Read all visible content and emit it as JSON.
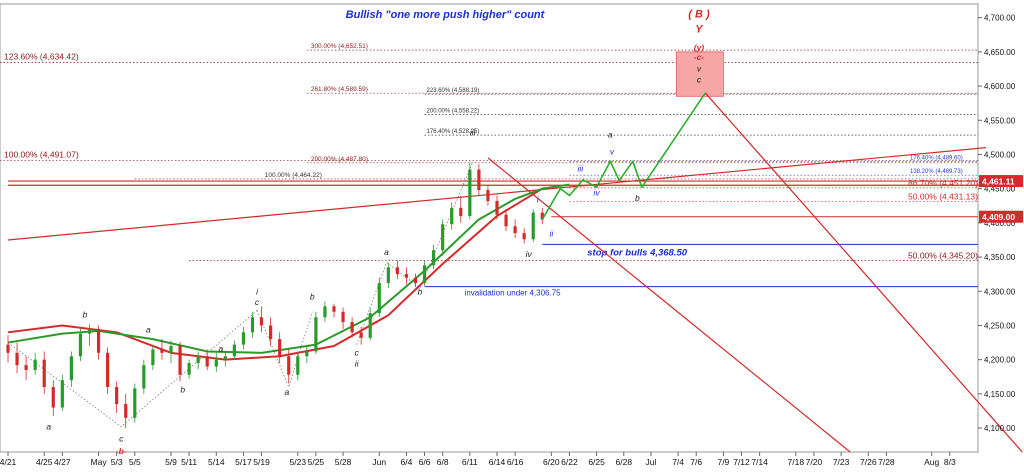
{
  "chart_data": {
    "type": "candlestick",
    "title": "Bullish \"one more push higher\" count",
    "ylim": [
      4065,
      4720
    ],
    "y_ticks": [
      4100,
      4150,
      4200,
      4250,
      4300,
      4350,
      4400,
      4450,
      4500,
      4550,
      4600,
      4650,
      4700
    ],
    "y_tick_labels": [
      "4,100.00",
      "4,150.00",
      "4,200.00",
      "4,250.00",
      "4,300.00",
      "4,350.00",
      "4,400.00",
      "4,450.00",
      "4,500.00",
      "4,550.00",
      "4,600.00",
      "4,650.00",
      "4,700.00"
    ],
    "x_ticks": [
      {
        "d": 0,
        "label": "4/21"
      },
      {
        "d": 4,
        "label": "4/25"
      },
      {
        "d": 6,
        "label": "4/27"
      },
      {
        "d": 10,
        "label": "May"
      },
      {
        "d": 12,
        "label": "5/3"
      },
      {
        "d": 14,
        "label": "5/5"
      },
      {
        "d": 18,
        "label": "5/9"
      },
      {
        "d": 20,
        "label": "5/11"
      },
      {
        "d": 23,
        "label": "5/14"
      },
      {
        "d": 26,
        "label": "5/17"
      },
      {
        "d": 28,
        "label": "5/19"
      },
      {
        "d": 32,
        "label": "5/23"
      },
      {
        "d": 34,
        "label": "5/25"
      },
      {
        "d": 37,
        "label": "5/28"
      },
      {
        "d": 41,
        "label": "Jun"
      },
      {
        "d": 44,
        "label": "6/4"
      },
      {
        "d": 46,
        "label": "6/6"
      },
      {
        "d": 48,
        "label": "6/8"
      },
      {
        "d": 51,
        "label": "6/11"
      },
      {
        "d": 54,
        "label": "6/14"
      },
      {
        "d": 56,
        "label": "6/16"
      },
      {
        "d": 60,
        "label": "6/20"
      },
      {
        "d": 62,
        "label": "6/22"
      },
      {
        "d": 65,
        "label": "6/25"
      },
      {
        "d": 68,
        "label": "6/28"
      },
      {
        "d": 71,
        "label": "Jul"
      },
      {
        "d": 74,
        "label": "7/4"
      },
      {
        "d": 76,
        "label": "7/6"
      },
      {
        "d": 79,
        "label": "7/9"
      },
      {
        "d": 81,
        "label": "7/12"
      },
      {
        "d": 83,
        "label": "7/14"
      },
      {
        "d": 87,
        "label": "7/18"
      },
      {
        "d": 89,
        "label": "7/20"
      },
      {
        "d": 92,
        "label": "7/23"
      },
      {
        "d": 95,
        "label": "7/26"
      },
      {
        "d": 97,
        "label": "7/28"
      },
      {
        "d": 102,
        "label": "Aug"
      },
      {
        "d": 104,
        "label": "8/3"
      }
    ],
    "candles": [
      {
        "d": 0,
        "o": 4222,
        "h": 4236,
        "l": 4196,
        "c": 4210
      },
      {
        "d": 1,
        "o": 4210,
        "h": 4225,
        "l": 4180,
        "c": 4192
      },
      {
        "d": 2,
        "o": 4192,
        "h": 4205,
        "l": 4170,
        "c": 4185
      },
      {
        "d": 3,
        "o": 4185,
        "h": 4210,
        "l": 4178,
        "c": 4200
      },
      {
        "d": 4,
        "o": 4200,
        "h": 4212,
        "l": 4150,
        "c": 4160
      },
      {
        "d": 5,
        "o": 4160,
        "h": 4170,
        "l": 4118,
        "c": 4130
      },
      {
        "d": 6,
        "o": 4130,
        "h": 4178,
        "l": 4125,
        "c": 4170
      },
      {
        "d": 7,
        "o": 4170,
        "h": 4212,
        "l": 4160,
        "c": 4205
      },
      {
        "d": 8,
        "o": 4205,
        "h": 4246,
        "l": 4198,
        "c": 4238
      },
      {
        "d": 9,
        "o": 4238,
        "h": 4252,
        "l": 4220,
        "c": 4244
      },
      {
        "d": 10,
        "o": 4244,
        "h": 4250,
        "l": 4200,
        "c": 4210
      },
      {
        "d": 11,
        "o": 4210,
        "h": 4218,
        "l": 4150,
        "c": 4160
      },
      {
        "d": 12,
        "o": 4160,
        "h": 4168,
        "l": 4122,
        "c": 4135
      },
      {
        "d": 13,
        "o": 4135,
        "h": 4150,
        "l": 4100,
        "c": 4115
      },
      {
        "d": 14,
        "o": 4115,
        "h": 4165,
        "l": 4108,
        "c": 4158
      },
      {
        "d": 15,
        "o": 4158,
        "h": 4200,
        "l": 4150,
        "c": 4192
      },
      {
        "d": 16,
        "o": 4192,
        "h": 4222,
        "l": 4185,
        "c": 4215
      },
      {
        "d": 17,
        "o": 4215,
        "h": 4230,
        "l": 4200,
        "c": 4210
      },
      {
        "d": 18,
        "o": 4210,
        "h": 4228,
        "l": 4195,
        "c": 4220
      },
      {
        "d": 19,
        "o": 4220,
        "h": 4226,
        "l": 4168,
        "c": 4178
      },
      {
        "d": 20,
        "o": 4178,
        "h": 4200,
        "l": 4172,
        "c": 4195
      },
      {
        "d": 21,
        "o": 4195,
        "h": 4212,
        "l": 4186,
        "c": 4205
      },
      {
        "d": 22,
        "o": 4205,
        "h": 4215,
        "l": 4185,
        "c": 4190
      },
      {
        "d": 23,
        "o": 4190,
        "h": 4210,
        "l": 4182,
        "c": 4200
      },
      {
        "d": 24,
        "o": 4200,
        "h": 4212,
        "l": 4190,
        "c": 4205
      },
      {
        "d": 25,
        "o": 4205,
        "h": 4228,
        "l": 4200,
        "c": 4222
      },
      {
        "d": 26,
        "o": 4222,
        "h": 4248,
        "l": 4215,
        "c": 4240
      },
      {
        "d": 27,
        "o": 4240,
        "h": 4270,
        "l": 4232,
        "c": 4262
      },
      {
        "d": 28,
        "o": 4262,
        "h": 4278,
        "l": 4240,
        "c": 4250
      },
      {
        "d": 29,
        "o": 4250,
        "h": 4262,
        "l": 4220,
        "c": 4230
      },
      {
        "d": 30,
        "o": 4230,
        "h": 4240,
        "l": 4195,
        "c": 4205
      },
      {
        "d": 31,
        "o": 4205,
        "h": 4215,
        "l": 4165,
        "c": 4178
      },
      {
        "d": 32,
        "o": 4178,
        "h": 4212,
        "l": 4170,
        "c": 4205
      },
      {
        "d": 33,
        "o": 4205,
        "h": 4220,
        "l": 4195,
        "c": 4212
      },
      {
        "d": 34,
        "o": 4212,
        "h": 4270,
        "l": 4208,
        "c": 4262
      },
      {
        "d": 35,
        "o": 4262,
        "h": 4285,
        "l": 4255,
        "c": 4278
      },
      {
        "d": 36,
        "o": 4278,
        "h": 4282,
        "l": 4262,
        "c": 4270
      },
      {
        "d": 37,
        "o": 4270,
        "h": 4276,
        "l": 4245,
        "c": 4255
      },
      {
        "d": 38,
        "o": 4255,
        "h": 4262,
        "l": 4232,
        "c": 4240
      },
      {
        "d": 39,
        "o": 4240,
        "h": 4248,
        "l": 4222,
        "c": 4232
      },
      {
        "d": 40,
        "o": 4232,
        "h": 4275,
        "l": 4228,
        "c": 4268
      },
      {
        "d": 41,
        "o": 4268,
        "h": 4320,
        "l": 4262,
        "c": 4312
      },
      {
        "d": 42,
        "o": 4312,
        "h": 4342,
        "l": 4305,
        "c": 4335
      },
      {
        "d": 43,
        "o": 4335,
        "h": 4345,
        "l": 4318,
        "c": 4325
      },
      {
        "d": 44,
        "o": 4325,
        "h": 4335,
        "l": 4310,
        "c": 4320
      },
      {
        "d": 45,
        "o": 4320,
        "h": 4326,
        "l": 4306,
        "c": 4312
      },
      {
        "d": 46,
        "o": 4312,
        "h": 4345,
        "l": 4308,
        "c": 4338
      },
      {
        "d": 47,
        "o": 4338,
        "h": 4368,
        "l": 4332,
        "c": 4360
      },
      {
        "d": 48,
        "o": 4360,
        "h": 4405,
        "l": 4352,
        "c": 4398
      },
      {
        "d": 49,
        "o": 4398,
        "h": 4430,
        "l": 4390,
        "c": 4422
      },
      {
        "d": 50,
        "o": 4422,
        "h": 4440,
        "l": 4400,
        "c": 4410
      },
      {
        "d": 51,
        "o": 4410,
        "h": 4488,
        "l": 4405,
        "c": 4478
      },
      {
        "d": 52,
        "o": 4478,
        "h": 4486,
        "l": 4440,
        "c": 4448
      },
      {
        "d": 53,
        "o": 4448,
        "h": 4455,
        "l": 4425,
        "c": 4432
      },
      {
        "d": 54,
        "o": 4432,
        "h": 4440,
        "l": 4405,
        "c": 4412
      },
      {
        "d": 55,
        "o": 4412,
        "h": 4420,
        "l": 4388,
        "c": 4395
      },
      {
        "d": 56,
        "o": 4395,
        "h": 4405,
        "l": 4378,
        "c": 4385
      },
      {
        "d": 57,
        "o": 4385,
        "h": 4392,
        "l": 4370,
        "c": 4376
      },
      {
        "d": 58,
        "o": 4376,
        "h": 4420,
        "l": 4372,
        "c": 4415
      },
      {
        "d": 59,
        "o": 4415,
        "h": 4422,
        "l": 4398,
        "c": 4405
      }
    ],
    "moving_averages": [
      {
        "name": "",
        "color": "#d42a2a",
        "d": [
          0,
          6,
          12,
          18,
          24,
          30,
          36,
          42,
          48,
          54,
          59
        ],
        "values": [
          4240,
          4250,
          4240,
          4210,
          4200,
          4205,
          4220,
          4265,
          4340,
          4410,
          4450
        ]
      },
      {
        "name": "",
        "color": "#2a9a2a",
        "d": [
          0,
          6,
          10,
          16,
          22,
          28,
          34,
          40,
          46,
          52,
          56,
          59,
          62
        ],
        "values": [
          4225,
          4238,
          4242,
          4230,
          4212,
          4210,
          4222,
          4262,
          4330,
          4405,
          4435,
          4450,
          4456
        ]
      }
    ],
    "projection_path": [
      {
        "d": 59,
        "v": 4405
      },
      {
        "d": 61,
        "v": 4450
      },
      {
        "d": 62,
        "v": 4440
      },
      {
        "d": 63.5,
        "v": 4463
      },
      {
        "d": 65,
        "v": 4452
      },
      {
        "d": 66.5,
        "v": 4490
      },
      {
        "d": 67.5,
        "v": 4462
      },
      {
        "d": 69,
        "v": 4490
      },
      {
        "d": 70,
        "v": 4452
      },
      {
        "d": 77,
        "v": 4590
      }
    ],
    "price_levels": [
      {
        "name": "stop for bulls",
        "v": 4368.5,
        "label": "stop for bulls 4,368.50",
        "color": "#1c2fd0",
        "from": 59,
        "to": 108
      },
      {
        "name": "invalidation",
        "v": 4306.75,
        "label": "invalidation under 4,306.75",
        "color": "#1c2fd0",
        "from": 46,
        "to": 108
      },
      {
        "name": "current",
        "v": 4461.11,
        "color": "#d42a2a",
        "from": 0,
        "to": 108
      },
      {
        "name": "last",
        "v": 4409.0,
        "color": "#d42a2a",
        "from": 60,
        "to": 108
      }
    ],
    "fib_levels": [
      {
        "label": "300.00% (4,652.51)",
        "v": 4652.51,
        "from": 33,
        "to": 108,
        "color": "#8b1a1a"
      },
      {
        "label": "261.80% (4,589.59)",
        "v": 4589.59,
        "from": 33,
        "to": 108,
        "color": "#8b1a1a"
      },
      {
        "label": "200.00% (4,487.80)",
        "v": 4487.8,
        "from": 33,
        "to": 108,
        "color": "#8b1a1a"
      },
      {
        "label": "100.00% (4,464.22)",
        "v": 4464.22,
        "from": 14,
        "to": 108,
        "color": "#333333"
      },
      {
        "label": "223.60% (4,588.19)",
        "v": 4588.19,
        "from": 46,
        "to": 108,
        "color": "#333333"
      },
      {
        "label": "200.00% (4,558.22)",
        "v": 4558.22,
        "from": 46,
        "to": 108,
        "color": "#333333"
      },
      {
        "label": "176.40% (4,528.25)",
        "v": 4528.25,
        "from": 46,
        "to": 108,
        "color": "#333333"
      },
      {
        "label": "176.40% (4,489.60)",
        "v": 4489.6,
        "from": 62,
        "to": 108,
        "color": "#2a3acc"
      },
      {
        "label": "138.20% (4,469.73)",
        "v": 4469.73,
        "from": 62,
        "to": 108,
        "color": "#2a3acc"
      },
      {
        "label": "86.70% (4,451.20)",
        "v": 4451.2,
        "from": 62,
        "to": 108,
        "color": "#d42a2a"
      },
      {
        "label": "50.00% (4,431.13)",
        "v": 4431.13,
        "from": 62,
        "to": 108,
        "color": "#d42a2a"
      },
      {
        "label": "50.00% (4,345.20)",
        "v": 4345.2,
        "from": 20,
        "to": 108,
        "color": "#8b1a1a"
      }
    ],
    "left_levels": [
      {
        "label": "123.60% (4,634.42)",
        "v": 4634.42,
        "color": "#8b1a1a"
      },
      {
        "label": "100.00% (4,491.07)",
        "v": 4491.07,
        "color": "#8b1a1a"
      }
    ],
    "price_tags": [
      {
        "label": "4,461.11",
        "v": 4461.11
      },
      {
        "label": "4,409.00",
        "v": 4409.0
      }
    ],
    "wave_labels": [
      {
        "t": "a",
        "d": 4.5,
        "v": 4098,
        "color": "#222"
      },
      {
        "t": "b",
        "d": 8.5,
        "v": 4262,
        "color": "#222"
      },
      {
        "t": "c",
        "d": 12.5,
        "v": 4080,
        "color": "#222"
      },
      {
        "t": "-b-",
        "d": 12.5,
        "v": 4062,
        "color": "#d42a2a"
      },
      {
        "t": "a",
        "d": 15.5,
        "v": 4240,
        "color": "#222"
      },
      {
        "t": "b",
        "d": 19.3,
        "v": 4152,
        "color": "#222"
      },
      {
        "t": "a",
        "d": 23.5,
        "v": 4212,
        "color": "#222"
      },
      {
        "t": "i",
        "d": 27.5,
        "v": 4295,
        "color": "#222"
      },
      {
        "t": "c",
        "d": 27.5,
        "v": 4280,
        "color": "#222"
      },
      {
        "t": "a",
        "d": 30.8,
        "v": 4148,
        "color": "#222"
      },
      {
        "t": "b",
        "d": 33.6,
        "v": 4288,
        "color": "#222"
      },
      {
        "t": "c",
        "d": 38.5,
        "v": 4206,
        "color": "#222"
      },
      {
        "t": "ii",
        "d": 38.5,
        "v": 4190,
        "color": "#222"
      },
      {
        "t": "a",
        "d": 41.8,
        "v": 4353,
        "color": "#222"
      },
      {
        "t": "b",
        "d": 45.5,
        "v": 4295,
        "color": "#222"
      },
      {
        "t": "iii",
        "d": 51.3,
        "v": 4528,
        "color": "#222"
      },
      {
        "t": "iv",
        "d": 57.5,
        "v": 4350,
        "color": "#222"
      },
      {
        "t": "i",
        "d": 58.5,
        "v": 4430,
        "color": "#1c2fd0"
      },
      {
        "t": "ii",
        "d": 60,
        "v": 4380,
        "color": "#1c2fd0"
      },
      {
        "t": "iii",
        "d": 63.2,
        "v": 4475,
        "color": "#1c2fd0"
      },
      {
        "t": "iv",
        "d": 65,
        "v": 4440,
        "color": "#1c2fd0"
      },
      {
        "t": "a",
        "d": 66.5,
        "v": 4525,
        "color": "#222"
      },
      {
        "t": "v",
        "d": 66.7,
        "v": 4500,
        "color": "#1c2fd0"
      },
      {
        "t": "b",
        "d": 69.5,
        "v": 4432,
        "color": "#222"
      },
      {
        "t": "c",
        "d": 76.3,
        "v": 4605,
        "color": "#222"
      },
      {
        "t": "v",
        "d": 76.3,
        "v": 4621,
        "color": "#222"
      },
      {
        "t": "-c-",
        "d": 76.3,
        "v": 4638,
        "color": "#d42a2a"
      },
      {
        "t": "(y)",
        "d": 76.3,
        "v": 4652,
        "color": "#d42a2a"
      },
      {
        "t": "Y",
        "d": 76.3,
        "v": 4678,
        "color": "#d42a2a"
      },
      {
        "t": "( B )",
        "d": 76.3,
        "v": 4700,
        "color": "#d42a2a"
      }
    ],
    "target_zone": {
      "d_from": 73.8,
      "d_to": 79,
      "v_from": 4585,
      "v_to": 4650,
      "color": "#f7a6a6"
    },
    "trendlines": [
      {
        "from": {
          "d": 0,
          "v": 4375
        },
        "to": {
          "d": 108,
          "v": 4510
        },
        "color": "#d42a2a"
      },
      {
        "from": {
          "d": 53,
          "v": 4495
        },
        "to": {
          "d": 93,
          "v": 4065
        },
        "color": "#d42a2a"
      },
      {
        "from": {
          "d": 77,
          "v": 4590
        },
        "to": {
          "d": 112,
          "v": 4065
        },
        "color": "#d42a2a"
      },
      {
        "from": {
          "d": 0,
          "v": 4455
        },
        "to": {
          "d": 108,
          "v": 4455
        },
        "color": "#d42a2a"
      }
    ],
    "dotted_paths": [
      [
        {
          "d": 0,
          "v": 4225
        },
        {
          "d": 12.5,
          "v": 4102
        },
        {
          "d": 27.5,
          "v": 4272
        }
      ],
      [
        {
          "d": 27.5,
          "v": 4272
        },
        {
          "d": 31,
          "v": 4160
        },
        {
          "d": 33.6,
          "v": 4270
        }
      ],
      [
        {
          "d": 38.5,
          "v": 4222
        },
        {
          "d": 41.8,
          "v": 4342
        },
        {
          "d": 45.5,
          "v": 4305
        },
        {
          "d": 51.3,
          "v": 4488
        }
      ]
    ]
  }
}
